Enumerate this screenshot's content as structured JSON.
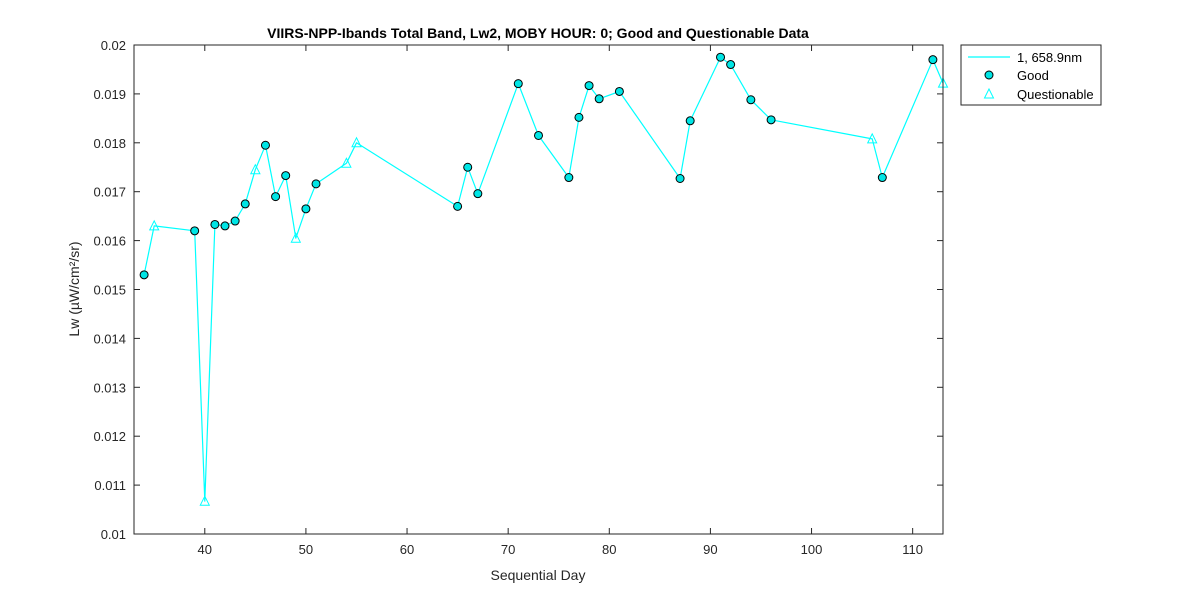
{
  "chart_data": {
    "type": "line",
    "title": "VIIRS-NPP-Ibands Total Band,  Lw2, MOBY HOUR: 0;  Good and Questionable Data",
    "xlabel": "Sequential Day",
    "ylabel": "Lw (µW/cm²/sr)",
    "xlim": [
      33,
      113
    ],
    "ylim": [
      0.01,
      0.02
    ],
    "xticks": [
      40,
      50,
      60,
      70,
      80,
      90,
      100,
      110
    ],
    "yticks": [
      0.01,
      0.011,
      0.012,
      0.013,
      0.014,
      0.015,
      0.016,
      0.017,
      0.018,
      0.019,
      0.02
    ],
    "ytick_labels": [
      "0.01",
      "0.011",
      "0.012",
      "0.013",
      "0.014",
      "0.015",
      "0.016",
      "0.017",
      "0.018",
      "0.019",
      "0.02"
    ],
    "legend_position": "outside-top-right",
    "series": [
      {
        "name": "1, 658.9nm",
        "style": "line",
        "color": "#00ffff",
        "points": [
          [
            34,
            0.0153
          ],
          [
            35,
            0.0163
          ],
          [
            39,
            0.0162
          ],
          [
            40,
            0.01067
          ],
          [
            41,
            0.01633
          ],
          [
            42,
            0.0163
          ],
          [
            43,
            0.0164
          ],
          [
            44,
            0.01675
          ],
          [
            45,
            0.01745
          ],
          [
            46,
            0.01795
          ],
          [
            47,
            0.0169
          ],
          [
            48,
            0.01733
          ],
          [
            49,
            0.01605
          ],
          [
            50,
            0.01665
          ],
          [
            51,
            0.01716
          ],
          [
            54,
            0.01758
          ],
          [
            55,
            0.018
          ],
          [
            65,
            0.0167
          ],
          [
            66,
            0.0175
          ],
          [
            67,
            0.01696
          ],
          [
            71,
            0.01921
          ],
          [
            73,
            0.01815
          ],
          [
            76,
            0.01729
          ],
          [
            77,
            0.01852
          ],
          [
            78,
            0.01917
          ],
          [
            79,
            0.0189
          ],
          [
            81,
            0.01905
          ],
          [
            87,
            0.01727
          ],
          [
            88,
            0.01845
          ],
          [
            91,
            0.01975
          ],
          [
            92,
            0.0196
          ],
          [
            94,
            0.01888
          ],
          [
            96,
            0.01847
          ],
          [
            106,
            0.01808
          ],
          [
            107,
            0.01729
          ],
          [
            112,
            0.0197
          ],
          [
            113,
            0.01922
          ]
        ]
      },
      {
        "name": "Good",
        "style": "marker-circle",
        "color": "#00e5e5",
        "edge_color": "#000000",
        "points": [
          [
            34,
            0.0153
          ],
          [
            39,
            0.0162
          ],
          [
            41,
            0.01633
          ],
          [
            42,
            0.0163
          ],
          [
            43,
            0.0164
          ],
          [
            44,
            0.01675
          ],
          [
            46,
            0.01795
          ],
          [
            47,
            0.0169
          ],
          [
            48,
            0.01733
          ],
          [
            50,
            0.01665
          ],
          [
            51,
            0.01716
          ],
          [
            65,
            0.0167
          ],
          [
            66,
            0.0175
          ],
          [
            67,
            0.01696
          ],
          [
            71,
            0.01921
          ],
          [
            73,
            0.01815
          ],
          [
            76,
            0.01729
          ],
          [
            77,
            0.01852
          ],
          [
            78,
            0.01917
          ],
          [
            79,
            0.0189
          ],
          [
            81,
            0.01905
          ],
          [
            87,
            0.01727
          ],
          [
            88,
            0.01845
          ],
          [
            91,
            0.01975
          ],
          [
            92,
            0.0196
          ],
          [
            94,
            0.01888
          ],
          [
            96,
            0.01847
          ],
          [
            107,
            0.01729
          ],
          [
            112,
            0.0197
          ]
        ]
      },
      {
        "name": "Questionable",
        "style": "marker-triangle",
        "color": "#00ffff",
        "points": [
          [
            35,
            0.0163
          ],
          [
            40,
            0.01067
          ],
          [
            45,
            0.01745
          ],
          [
            49,
            0.01605
          ],
          [
            54,
            0.01758
          ],
          [
            55,
            0.018
          ],
          [
            106,
            0.01808
          ],
          [
            113,
            0.01922
          ]
        ]
      }
    ]
  }
}
